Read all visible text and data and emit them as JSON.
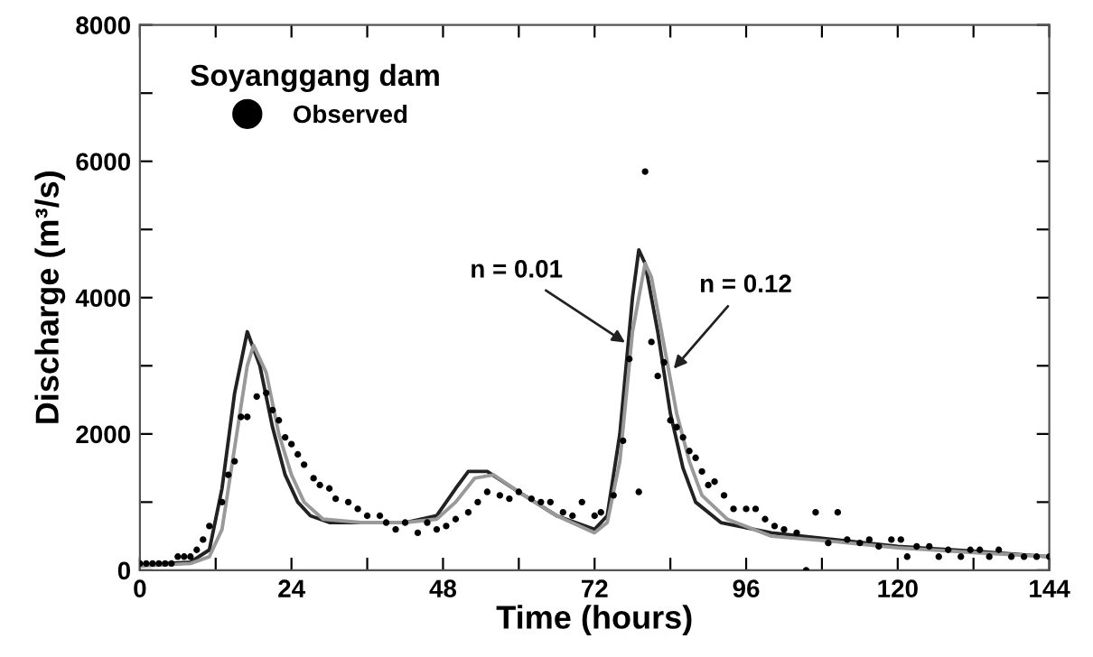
{
  "chart_data": {
    "type": "scatter",
    "xlabel": "Time (hours)",
    "ylabel": "Discharge (m³/s)",
    "legend_title": "Soyanggang dam",
    "legend": "top left",
    "grid": false,
    "xlim": [
      0,
      144
    ],
    "ylim": [
      0,
      8000
    ],
    "xticks": [
      0,
      {
        "value": 12,
        "label": null
      },
      24,
      {
        "value": 36,
        "label": null
      },
      48,
      {
        "value": 60,
        "label": null
      },
      72,
      {
        "value": 84,
        "label": null
      },
      96,
      {
        "value": 108,
        "label": null
      },
      120,
      {
        "value": 132,
        "label": null
      },
      144
    ],
    "yticks": [
      0,
      {
        "value": 1000,
        "label": null
      },
      2000,
      {
        "value": 3000,
        "label": null
      },
      4000,
      {
        "value": 5000,
        "label": null
      },
      6000,
      {
        "value": 7000,
        "label": null
      },
      8000
    ],
    "series": [
      {
        "type": "line",
        "color": "#222222",
        "marker": "none",
        "line_style": "solid",
        "x": [
          0,
          8,
          11,
          13,
          15,
          17,
          19,
          21,
          23,
          25,
          27,
          30,
          36,
          42,
          47,
          50,
          52,
          55,
          60,
          66,
          72,
          74,
          76,
          78,
          79,
          80,
          82,
          84,
          86,
          88,
          92,
          100,
          110,
          120,
          132,
          144
        ],
        "values": [
          80,
          120,
          300,
          1200,
          2600,
          3500,
          3000,
          2100,
          1400,
          1000,
          800,
          700,
          700,
          700,
          800,
          1200,
          1450,
          1450,
          1150,
          800,
          600,
          800,
          2000,
          4000,
          4700,
          4500,
          3500,
          2300,
          1500,
          1000,
          700,
          550,
          450,
          350,
          280,
          200
        ]
      },
      {
        "type": "line",
        "color": "#999999",
        "marker": "none",
        "line_style": "solid",
        "x": [
          0,
          8,
          11,
          13,
          15,
          17,
          18,
          20,
          22,
          24,
          26,
          29,
          35,
          42,
          47,
          50,
          53,
          56,
          60,
          66,
          72,
          74,
          76,
          78,
          80,
          81,
          83,
          85,
          87,
          89,
          93,
          100,
          110,
          120,
          132,
          144
        ],
        "values": [
          60,
          100,
          200,
          600,
          1800,
          3000,
          3300,
          2900,
          2000,
          1400,
          1000,
          750,
          700,
          700,
          750,
          1000,
          1350,
          1400,
          1150,
          800,
          550,
          700,
          1600,
          3500,
          4500,
          4300,
          3300,
          2300,
          1600,
          1100,
          750,
          500,
          420,
          330,
          260,
          200
        ]
      },
      {
        "name": "Observed",
        "color": "#000000",
        "marker": "circle",
        "x": [
          0,
          1,
          2,
          3,
          4,
          5,
          6,
          7,
          8,
          9,
          10,
          11,
          13,
          14,
          15,
          16,
          17,
          18.5,
          20,
          21,
          22,
          23,
          24,
          25,
          26,
          27.5,
          28.5,
          30,
          31,
          33,
          34.5,
          36,
          38,
          39,
          40.5,
          42,
          44,
          45.5,
          47,
          48.5,
          50,
          52,
          53.5,
          55,
          57,
          58.5,
          60,
          62,
          63.5,
          65,
          67,
          68.5,
          70,
          72,
          73,
          75,
          76.5,
          77.5,
          79,
          80,
          81,
          82,
          83,
          84,
          85,
          86,
          87,
          88,
          89,
          90,
          91,
          92.5,
          94,
          96,
          97.5,
          99,
          100.5,
          102,
          104,
          105.5,
          107,
          109,
          110.5,
          112,
          114,
          115.5,
          117,
          119,
          120.5,
          121.5,
          123,
          125,
          126.5,
          128,
          130,
          131.5,
          133,
          134.5,
          136,
          138,
          140,
          142,
          144
        ],
        "values": [
          100,
          100,
          100,
          100,
          100,
          100,
          200,
          200,
          200,
          300,
          450,
          650,
          1000,
          1400,
          1600,
          2250,
          2250,
          2550,
          2600,
          2350,
          2200,
          1950,
          1850,
          1700,
          1550,
          1350,
          1250,
          1200,
          1050,
          1000,
          900,
          800,
          800,
          700,
          600,
          700,
          550,
          700,
          600,
          650,
          750,
          850,
          1000,
          1150,
          1100,
          1050,
          1150,
          1050,
          1000,
          1000,
          850,
          800,
          1000,
          800,
          850,
          1100,
          1900,
          3100,
          1150,
          5850,
          3350,
          2850,
          3050,
          2200,
          2100,
          1950,
          1750,
          1650,
          1450,
          1250,
          1300,
          1100,
          900,
          900,
          900,
          750,
          650,
          600,
          550,
          0,
          850,
          400,
          850,
          450,
          400,
          450,
          350,
          450,
          450,
          200,
          350,
          350,
          200,
          300,
          200,
          300,
          300,
          200,
          300,
          200,
          200,
          200,
          200
        ]
      }
    ],
    "annotations": [
      {
        "text": "n = 0.01",
        "x": 77.5,
        "y": 3300
      },
      {
        "text": "n = 0.12",
        "x": 84,
        "y": 2900
      }
    ]
  }
}
